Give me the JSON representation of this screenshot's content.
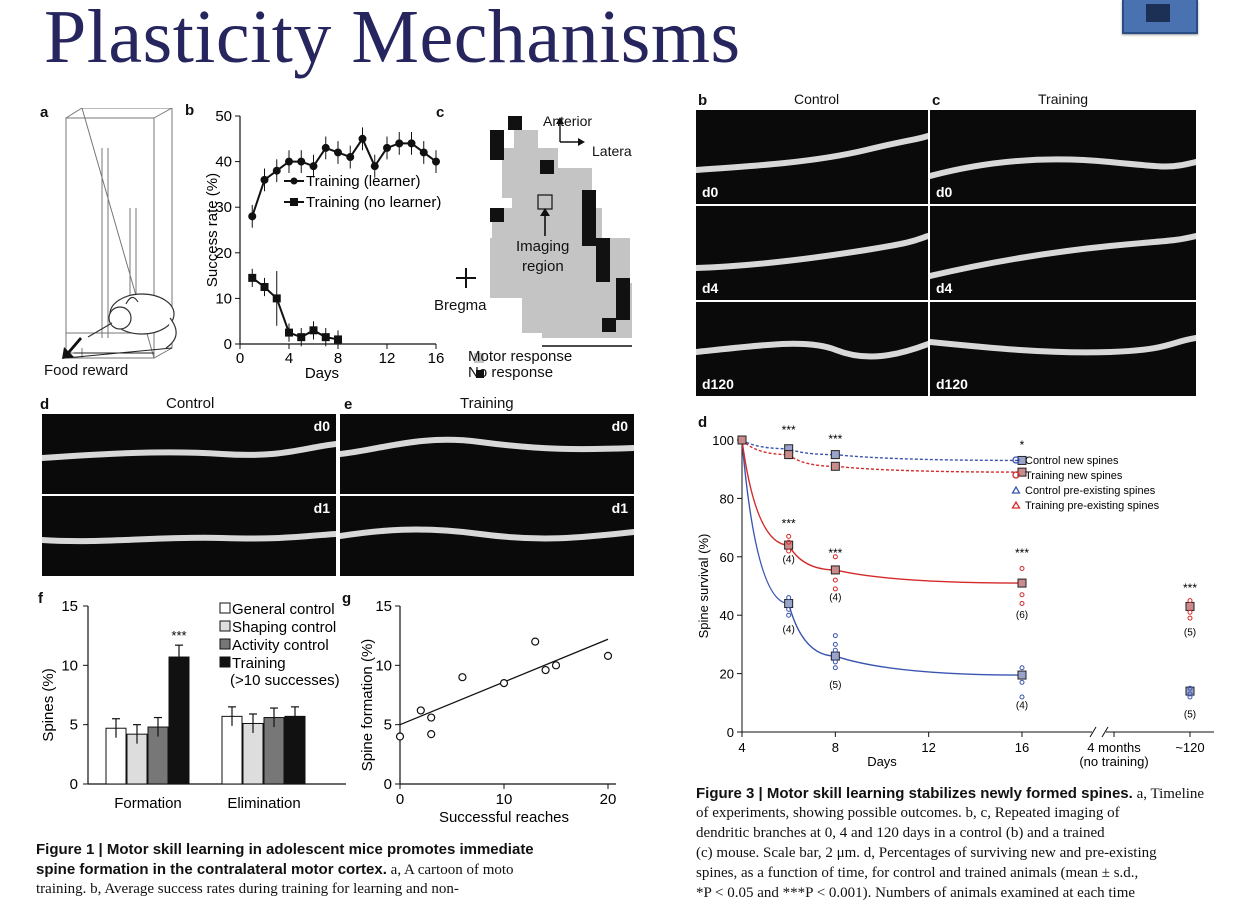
{
  "slide": {
    "title": "Plasticity Mechanisms"
  },
  "figure1": {
    "panel_a": {
      "label": "a",
      "food_reward": "Food reward"
    },
    "panel_b": {
      "label": "b",
      "ylabel": "Success rate (%)",
      "xlabel": "Days",
      "legend": [
        "Training (learner)",
        "Training (no learner)"
      ],
      "yticks": [
        "0",
        "10",
        "20",
        "30",
        "40",
        "50"
      ],
      "xticks": [
        "0",
        "4",
        "8",
        "12",
        "16"
      ]
    },
    "panel_c": {
      "label": "c",
      "anterior": "Anterior",
      "lateral": "Latera",
      "imaging": "Imaging",
      "region": "region",
      "bregma": "Bregma",
      "legend_motor": "Motor response",
      "legend_none": "No response"
    },
    "panel_d": {
      "label": "d",
      "title": "Control",
      "tag_top": "d0",
      "tag_bottom": "d1"
    },
    "panel_e": {
      "label": "e",
      "title": "Training",
      "tag_top": "d0",
      "tag_bottom": "d1"
    },
    "panel_f": {
      "label": "f",
      "ylabel": "Spines (%)",
      "categories": [
        "Formation",
        "Elimination"
      ],
      "legend": [
        "General control",
        "Shaping control",
        "Activity control",
        "Training",
        "(>10 successes)"
      ],
      "yticks": [
        "0",
        "5",
        "10",
        "15"
      ],
      "significance": "***"
    },
    "panel_g": {
      "label": "g",
      "ylabel": "Spine formation (%)",
      "xlabel": "Successful reaches",
      "yticks": [
        "0",
        "5",
        "10",
        "15"
      ],
      "xticks": [
        "0",
        "10",
        "20"
      ]
    },
    "caption_bold_1": "Figure 1 | Motor skill learning in adolescent mice promotes immediate",
    "caption_bold_2": "spine formation in the contralateral motor cortex.",
    "caption_rest_2": " a, A cartoon of moto",
    "caption_3": "training. b, Average success rates during training for learning and non-"
  },
  "figure3": {
    "panel_b": {
      "label": "b",
      "title": "Control",
      "tags": [
        "d0",
        "d4",
        "d120"
      ]
    },
    "panel_c": {
      "label": "c",
      "title": "Training",
      "tags": [
        "d0",
        "d4",
        "d120"
      ]
    },
    "panel_d": {
      "label": "d",
      "ylabel": "Spine survival (%)",
      "xlabel": "Days",
      "xticks": [
        "4",
        "8",
        "12",
        "16",
        "4 months",
        "~120"
      ],
      "x_note": "(no training)",
      "yticks": [
        "0",
        "20",
        "40",
        "60",
        "80",
        "100"
      ],
      "legend": [
        "Control new spines",
        "Training new spines",
        "Control pre-existing spines",
        "Training pre-existing spines"
      ],
      "sig": [
        "***",
        "***",
        "*",
        "***",
        "***",
        "***",
        "***"
      ],
      "ns": [
        "(4)",
        "(4)",
        "(6)",
        "(5)",
        "(4)",
        "(5)",
        "(4)",
        "(5)"
      ]
    },
    "caption_1_bold": "Figure 3 | Motor skill learning stabilizes newly formed spines.",
    "caption_1_rest": " a, Timeline",
    "caption_2": "of experiments, showing possible outcomes. b, c, Repeated imaging of",
    "caption_3": "dendritic branches at 0, 4 and 120 days in a control (b) and a trained",
    "caption_4": "(c) mouse. Scale bar, 2 μm. d, Percentages of surviving new and pre-existing",
    "caption_5": "spines, as a function of time, for control and trained animals (mean ± s.d.,",
    "caption_6": "*P < 0.05 and ***P < 0.001). Numbers of animals examined at each time"
  },
  "chart_data": [
    {
      "type": "line",
      "title": "",
      "xlabel": "Days",
      "ylabel": "Success rate (%)",
      "xlim": [
        0,
        16
      ],
      "ylim": [
        0,
        50
      ],
      "series": [
        {
          "name": "Training (learner)",
          "x": [
            1,
            2,
            3,
            4,
            5,
            6,
            7,
            8,
            9,
            10,
            11,
            12,
            13,
            14,
            15,
            16
          ],
          "y": [
            28,
            36,
            38,
            40,
            40,
            39,
            43,
            42,
            41,
            45,
            39,
            43,
            44,
            44,
            42,
            40
          ]
        },
        {
          "name": "Training (no learner)",
          "x": [
            1,
            2,
            3,
            4,
            5,
            6,
            7,
            8
          ],
          "y": [
            14.5,
            12.5,
            10,
            2.5,
            1.5,
            3,
            1.5,
            1
          ]
        }
      ]
    },
    {
      "type": "bar",
      "title": "",
      "ylabel": "Spines (%)",
      "ylim": [
        0,
        15
      ],
      "categories": [
        "Formation",
        "Elimination"
      ],
      "series": [
        {
          "name": "General control",
          "values": [
            4.7,
            5.7
          ]
        },
        {
          "name": "Shaping control",
          "values": [
            4.2,
            5.1
          ]
        },
        {
          "name": "Activity control",
          "values": [
            4.8,
            5.6
          ]
        },
        {
          "name": "Training (>10 successes)",
          "values": [
            10.7,
            5.7
          ]
        }
      ]
    },
    {
      "type": "scatter",
      "title": "",
      "xlabel": "Successful reaches",
      "ylabel": "Spine formation (%)",
      "xlim": [
        0,
        20
      ],
      "ylim": [
        0,
        15
      ],
      "points": [
        [
          0,
          4
        ],
        [
          2,
          6.2
        ],
        [
          3,
          5.6
        ],
        [
          3,
          4.2
        ],
        [
          6,
          9
        ],
        [
          10,
          8.5
        ],
        [
          13,
          12
        ],
        [
          14,
          9.6
        ],
        [
          15,
          10
        ],
        [
          20,
          10.8
        ]
      ],
      "fit_line": [
        [
          0,
          5
        ],
        [
          20,
          12.2
        ]
      ]
    },
    {
      "type": "line",
      "title": "",
      "xlabel": "Days",
      "ylabel": "Spine survival (%)",
      "ylim": [
        0,
        100
      ],
      "x": [
        4,
        6,
        8,
        16,
        120
      ],
      "series": [
        {
          "name": "Control new spines",
          "values": [
            100,
            44,
            26,
            19.5,
            14
          ]
        },
        {
          "name": "Training new spines",
          "values": [
            100,
            64,
            55.5,
            51,
            43
          ]
        },
        {
          "name": "Control pre-existing spines",
          "values": [
            100,
            97,
            95,
            93,
            null
          ]
        },
        {
          "name": "Training pre-existing spines",
          "values": [
            100,
            95,
            91,
            89,
            null
          ]
        }
      ]
    }
  ]
}
